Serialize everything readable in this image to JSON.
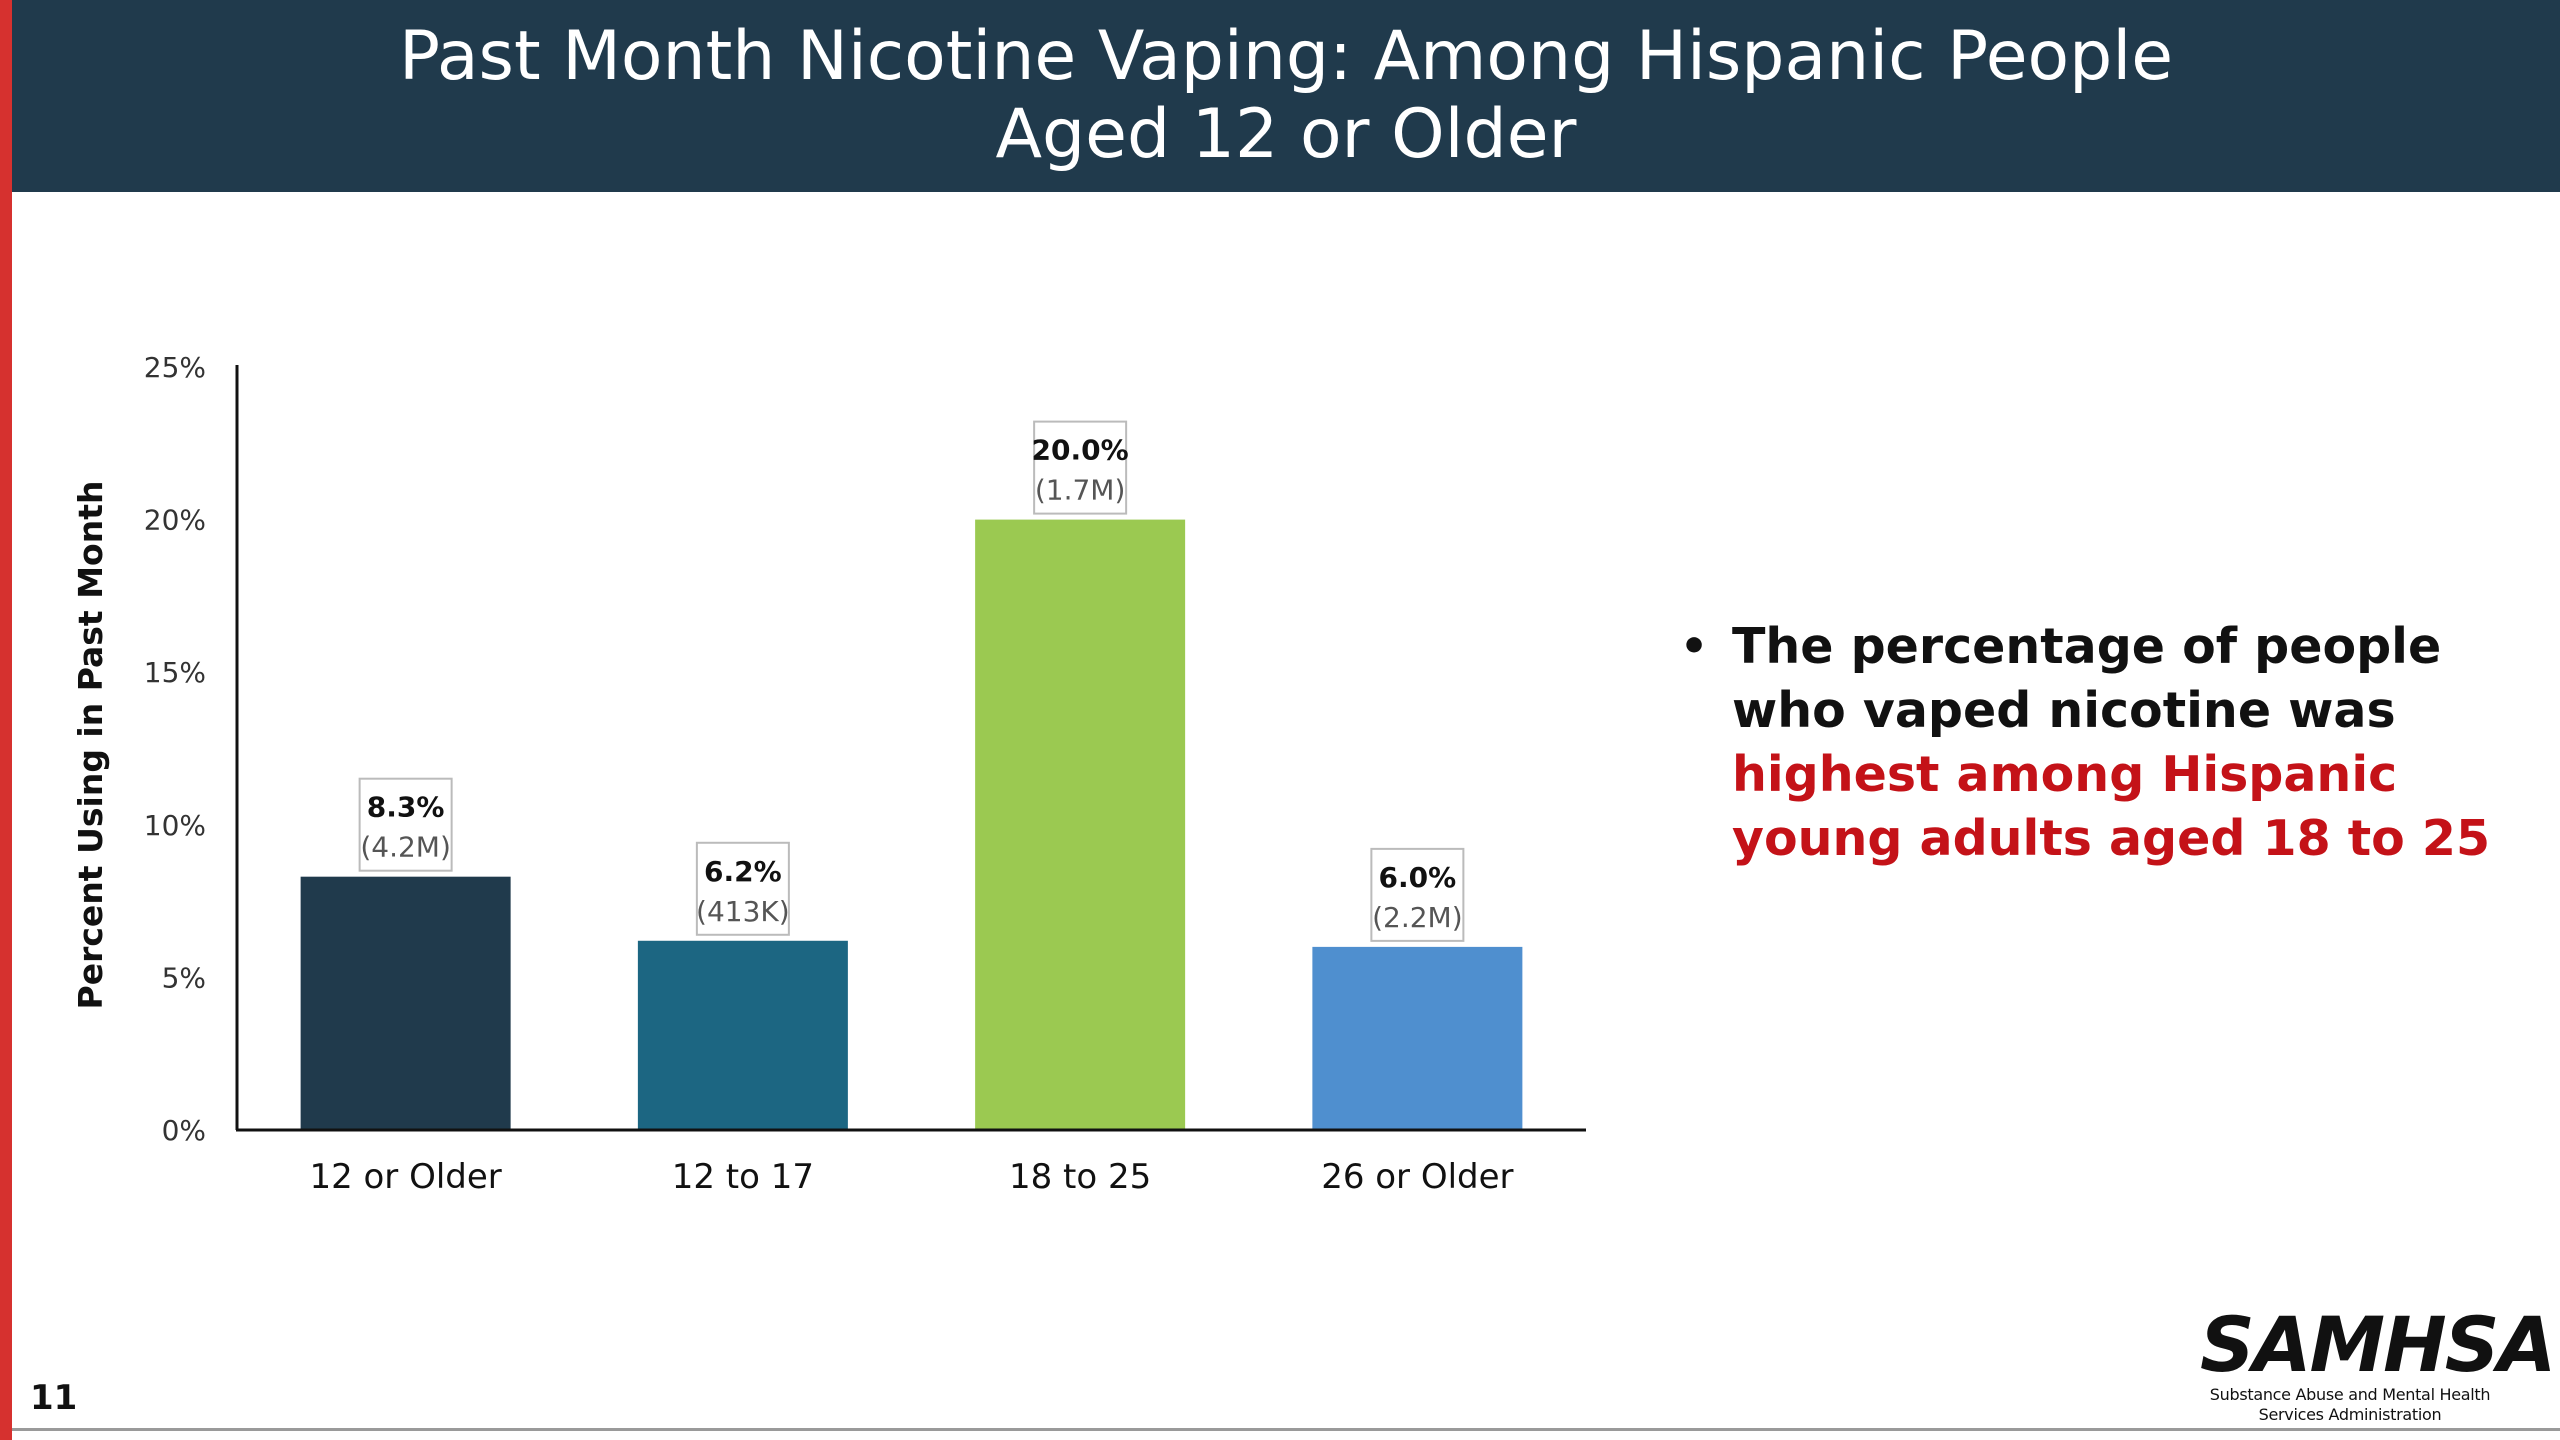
{
  "header": {
    "title_line1": "Past Month Nicotine Vaping: Among Hispanic People",
    "title_line2": "Aged 12 or Older"
  },
  "colors": {
    "header_bg": "#203a4c",
    "accent_red": "#d6312f",
    "highlight_red": "#c41218"
  },
  "chart_data": {
    "type": "bar",
    "title": "",
    "xlabel": "",
    "ylabel": "Percent Using in Past Month",
    "ylim": [
      0,
      25
    ],
    "yticks": [
      0,
      5,
      10,
      15,
      20,
      25
    ],
    "ytick_labels": [
      "0%",
      "5%",
      "10%",
      "15%",
      "20%",
      "25%"
    ],
    "categories": [
      "12 or Older",
      "12 to 17",
      "18 to 25",
      "26 or Older"
    ],
    "values": [
      8.3,
      6.2,
      20.0,
      6.0
    ],
    "value_labels": [
      "8.3%",
      "6.2%",
      "20.0%",
      "6.0%"
    ],
    "count_labels": [
      "(4.2M)",
      "(413K)",
      "(1.7M)",
      "(2.2M)"
    ],
    "bar_colors": [
      "#203a4c",
      "#1c6682",
      "#9bc951",
      "#4f8fcf"
    ],
    "grid": false,
    "legend": "none"
  },
  "bullet": {
    "text_plain": "The percentage of people who vaped nicotine was ",
    "text_highlight": "highest among Hispanic young adults aged 18 to 25"
  },
  "footer": {
    "page_number": "11",
    "logo_word": "SAMHSA",
    "logo_sub_line1": "Substance Abuse and Mental Health",
    "logo_sub_line2": "Services Administration"
  }
}
